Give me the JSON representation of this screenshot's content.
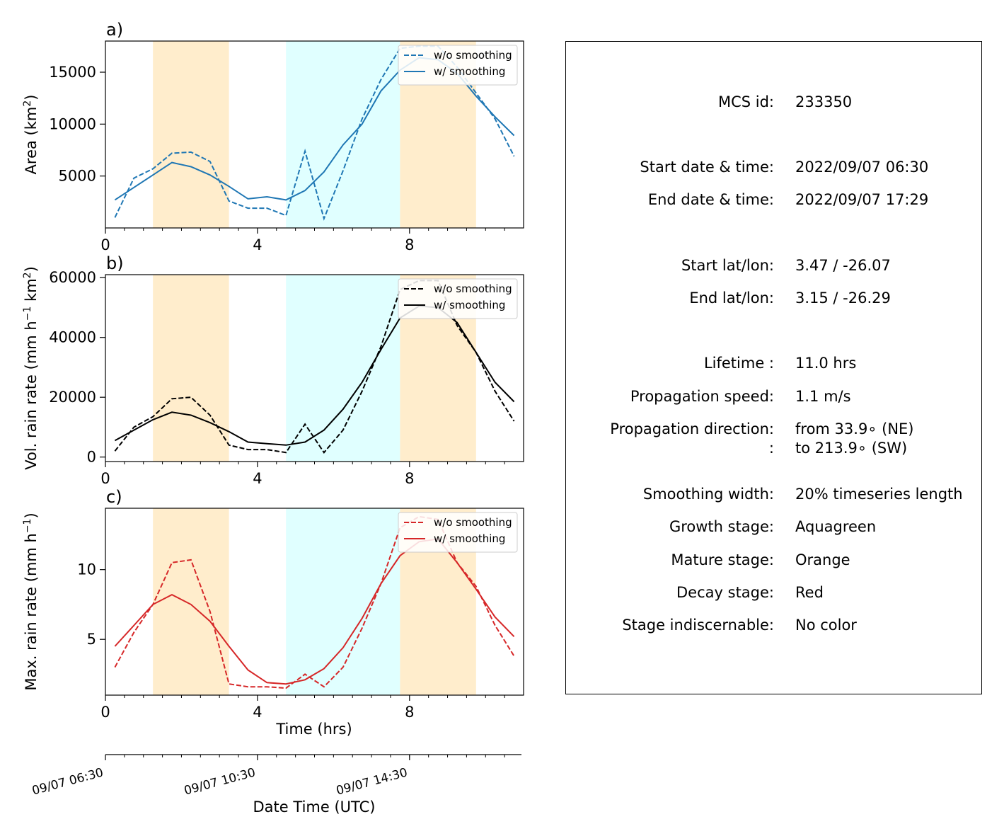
{
  "chart_data": [
    {
      "type": "line",
      "panel_label": "a)",
      "ylabel": "Area  (km²)",
      "ylabel_main": "Area  (km",
      "ylabel_sup": "2",
      "ylabel_tail": ")",
      "xlim": [
        0,
        11.0
      ],
      "ylim": [
        0,
        18000
      ],
      "xticks": [
        0,
        4,
        8
      ],
      "yticks": [
        5000,
        10000,
        15000
      ],
      "color": "#1f77b4",
      "x": [
        0.25,
        0.75,
        1.25,
        1.75,
        2.25,
        2.75,
        3.25,
        3.75,
        4.25,
        4.75,
        5.25,
        5.75,
        6.25,
        6.75,
        7.25,
        7.75,
        8.25,
        8.75,
        9.25,
        9.75,
        10.25,
        10.75
      ],
      "series": [
        {
          "name": "w/o smoothing",
          "style": "dashed",
          "values": [
            1000,
            4800,
            5700,
            7200,
            7300,
            6400,
            2600,
            1900,
            1900,
            1200,
            7400,
            900,
            5500,
            10500,
            14300,
            17300,
            17500,
            17500,
            15500,
            13000,
            10500,
            6900
          ]
        },
        {
          "name": "w/ smoothing",
          "style": "solid",
          "values": [
            2700,
            3900,
            5100,
            6300,
            5900,
            5100,
            4000,
            2800,
            3000,
            2700,
            3600,
            5400,
            8000,
            10000,
            13200,
            15200,
            16400,
            16200,
            14900,
            12700,
            10700,
            8900
          ]
        }
      ],
      "legend": "top-right"
    },
    {
      "type": "line",
      "panel_label": "b)",
      "ylabel": "Vol. rain rate (mm h⁻¹ km²)",
      "ylabel_main": "Vol. rain rate (mm h",
      "ylabel_sup": "−1",
      "ylabel_tail": " km",
      "ylabel_sup2": "2",
      "ylabel_tail2": ")",
      "xlim": [
        0,
        11.0
      ],
      "ylim": [
        -1500,
        61000
      ],
      "xticks": [
        0,
        4,
        8
      ],
      "yticks": [
        0,
        20000,
        40000,
        60000
      ],
      "color": "#000000",
      "x": [
        0.25,
        0.75,
        1.25,
        1.75,
        2.25,
        2.75,
        3.25,
        3.75,
        4.25,
        4.75,
        5.25,
        5.75,
        6.25,
        6.75,
        7.25,
        7.75,
        8.25,
        8.75,
        9.25,
        9.75,
        10.25,
        10.75
      ],
      "series": [
        {
          "name": "w/o smoothing",
          "style": "dashed",
          "values": [
            2000,
            10000,
            13500,
            19500,
            20000,
            14000,
            4000,
            2500,
            2500,
            1500,
            11000,
            1500,
            9000,
            22000,
            37000,
            56000,
            59000,
            59000,
            44000,
            35000,
            22000,
            12000
          ]
        },
        {
          "name": "w/ smoothing",
          "style": "solid",
          "values": [
            5500,
            9000,
            12500,
            15000,
            14000,
            11500,
            8500,
            5000,
            4500,
            4000,
            5000,
            9000,
            16000,
            25000,
            36000,
            46500,
            50500,
            50000,
            45000,
            35000,
            25000,
            18500
          ]
        }
      ],
      "legend": "top-right"
    },
    {
      "type": "line",
      "panel_label": "c)",
      "ylabel": "Max. rain rate  (mm h⁻¹)",
      "ylabel_main": "Max. rain rate  (mm h",
      "ylabel_sup": "−1",
      "ylabel_tail": ")",
      "xlabel": "Time (hrs)",
      "xlim": [
        0,
        11.0
      ],
      "ylim": [
        1.0,
        14.4
      ],
      "xticks": [
        0,
        4,
        8
      ],
      "yticks": [
        5,
        10
      ],
      "color": "#d62728",
      "x": [
        0.25,
        0.75,
        1.25,
        1.75,
        2.25,
        2.75,
        3.25,
        3.75,
        4.25,
        4.75,
        5.25,
        5.75,
        6.25,
        6.75,
        7.25,
        7.75,
        8.25,
        8.75,
        9.25,
        9.75,
        10.25,
        10.75
      ],
      "series": [
        {
          "name": "w/o smoothing",
          "style": "dashed",
          "values": [
            3.0,
            5.5,
            7.5,
            10.5,
            10.7,
            7.0,
            1.8,
            1.6,
            1.6,
            1.5,
            2.5,
            1.6,
            3.0,
            5.8,
            9.0,
            13.0,
            13.8,
            13.6,
            10.5,
            8.8,
            6.0,
            3.8
          ]
        },
        {
          "name": "w/ smoothing",
          "style": "solid",
          "values": [
            4.5,
            6.0,
            7.5,
            8.2,
            7.5,
            6.3,
            4.5,
            2.8,
            1.9,
            1.8,
            2.1,
            2.9,
            4.4,
            6.5,
            9.0,
            11.0,
            12.0,
            12.2,
            10.5,
            8.6,
            6.6,
            5.2
          ]
        }
      ],
      "legend": "top-right"
    }
  ],
  "stage_colors": {
    "orange": "#ffedcc",
    "aquagreen": "#e0ffff"
  },
  "stage_bands": [
    {
      "stage": "orange",
      "from": 1.25,
      "to": 3.25
    },
    {
      "stage": "aquagreen",
      "from": 4.75,
      "to": 7.75
    },
    {
      "stage": "orange",
      "from": 7.75,
      "to": 9.75
    }
  ],
  "datetime_axis": {
    "xlabel": "Date Time (UTC)",
    "ticks": [
      {
        "t": 0,
        "label": "09/07 06:30"
      },
      {
        "t": 4,
        "label": "09/07 10:30"
      },
      {
        "t": 8,
        "label": "09/07 14:30"
      }
    ]
  },
  "info": {
    "mcs_id_label": "MCS id:",
    "mcs_id": "233350",
    "start_dt_label": "Start date & time:",
    "start_dt": "2022/09/07 06:30",
    "end_dt_label": "End date & time:",
    "end_dt": "2022/09/07 17:29",
    "start_ll_label": "Start lat/lon:",
    "start_ll": "3.47 / -26.07",
    "end_ll_label": "End lat/lon:",
    "end_ll": "3.15 / -26.29",
    "lifetime_label": "Lifetime :",
    "lifetime": "11.0 hrs",
    "speed_label": "Propagation speed:",
    "speed": "1.1 m/s",
    "direction_label": "Propagation direction:",
    "direction_from": "from  33.9∘ (NE)",
    "direction_colon": ":",
    "direction_to": "to   213.9∘ (SW)",
    "smoothing_label": "Smoothing width:",
    "smoothing": "20% timeseries length",
    "growth_label": "Growth stage:",
    "growth": "Aquagreen",
    "mature_label": "Mature stage:",
    "mature": "Orange",
    "decay_label": "Decay stage:",
    "decay": "Red",
    "indisc_label": "Stage indiscernable:",
    "indisc": "No color"
  }
}
